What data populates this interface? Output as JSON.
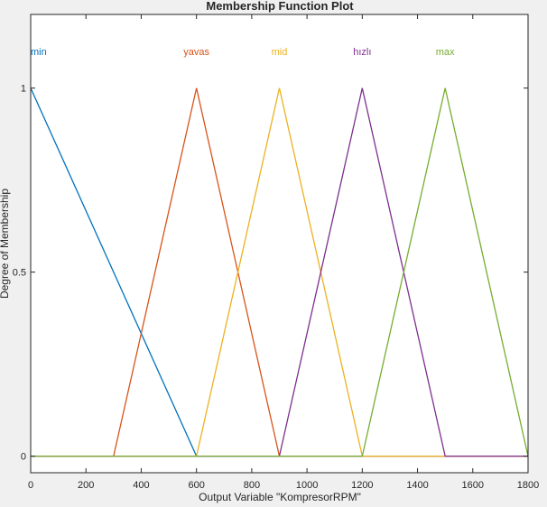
{
  "chart_data": {
    "type": "line",
    "title": "Membership Function Plot",
    "xlabel": "Output Variable \"KompresorRPM\"",
    "ylabel": "Degree of Membership",
    "xlim": [
      0,
      1800
    ],
    "ylim": [
      -0.045,
      1.2
    ],
    "xticks": [
      "0",
      "200",
      "400",
      "600",
      "800",
      "1000",
      "1200",
      "1400",
      "1600",
      "1800"
    ],
    "yticks": [
      "0",
      "0.5",
      "1"
    ],
    "grid": false,
    "series": [
      {
        "name": "min",
        "color": "#0072bd",
        "label_x": 0,
        "x": [
          0,
          600,
          1800
        ],
        "y": [
          1,
          0,
          0
        ]
      },
      {
        "name": "yavas",
        "color": "#d95319",
        "label_x": 600,
        "x": [
          0,
          300,
          600,
          900,
          1800
        ],
        "y": [
          0,
          0,
          1,
          0,
          0
        ]
      },
      {
        "name": "mid",
        "color": "#edb120",
        "label_x": 900,
        "x": [
          0,
          600,
          900,
          1200,
          1800
        ],
        "y": [
          0,
          0,
          1,
          0,
          0
        ]
      },
      {
        "name": "hızlı",
        "color": "#7e2f8e",
        "label_x": 1200,
        "x": [
          0,
          900,
          1200,
          1500,
          1800
        ],
        "y": [
          0,
          0,
          1,
          0,
          0
        ]
      },
      {
        "name": "max",
        "color": "#77ac30",
        "label_x": 1500,
        "x": [
          0,
          1200,
          1500,
          1800
        ],
        "y": [
          0,
          0,
          1,
          0
        ]
      }
    ]
  }
}
